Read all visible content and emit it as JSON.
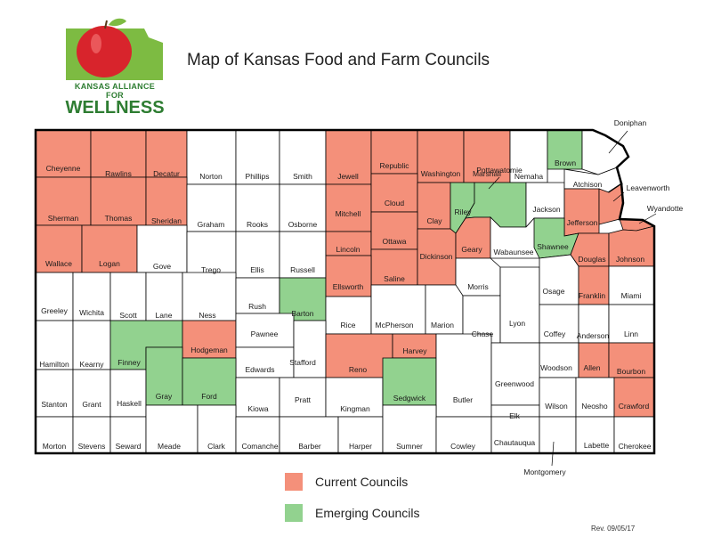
{
  "title": "Map of Kansas Food and Farm Councils",
  "logo": {
    "top_text": "KANSAS ALLIANCE FOR",
    "bottom_text": "WELLNESS"
  },
  "colors": {
    "current": "#f4907a",
    "emerging": "#92d28f",
    "none": "#ffffff",
    "border": "#000000",
    "logo_green": "#7dbb42",
    "logo_red": "#d8242c"
  },
  "legend": [
    {
      "label": "Current Councils",
      "status": "current"
    },
    {
      "label": "Emerging Councils",
      "status": "emerging"
    }
  ],
  "revision": "Rev. 09/05/17",
  "counties": [
    {
      "name": "Cheyenne",
      "status": "current"
    },
    {
      "name": "Rawlins",
      "status": "current"
    },
    {
      "name": "Decatur",
      "status": "current"
    },
    {
      "name": "Norton",
      "status": "none"
    },
    {
      "name": "Phillips",
      "status": "none"
    },
    {
      "name": "Smith",
      "status": "none"
    },
    {
      "name": "Jewell",
      "status": "current"
    },
    {
      "name": "Republic",
      "status": "current"
    },
    {
      "name": "Washington",
      "status": "current"
    },
    {
      "name": "Marshall",
      "status": "current"
    },
    {
      "name": "Nemaha",
      "status": "none"
    },
    {
      "name": "Brown",
      "status": "emerging"
    },
    {
      "name": "Sherman",
      "status": "current"
    },
    {
      "name": "Thomas",
      "status": "current"
    },
    {
      "name": "Sheridan",
      "status": "current"
    },
    {
      "name": "Graham",
      "status": "none"
    },
    {
      "name": "Rooks",
      "status": "none"
    },
    {
      "name": "Osborne",
      "status": "none"
    },
    {
      "name": "Mitchell",
      "status": "current"
    },
    {
      "name": "Cloud",
      "status": "current"
    },
    {
      "name": "Clay",
      "status": "current"
    },
    {
      "name": "Riley",
      "status": "emerging"
    },
    {
      "name": "Pottawatomie",
      "status": "emerging"
    },
    {
      "name": "Jackson",
      "status": "none"
    },
    {
      "name": "Atchison",
      "status": "none"
    },
    {
      "name": "Jefferson",
      "status": "current"
    },
    {
      "name": "Leavenworth",
      "status": "current"
    },
    {
      "name": "Wyandotte",
      "status": "current"
    },
    {
      "name": "Doniphan",
      "status": "none"
    },
    {
      "name": "Wallace",
      "status": "current"
    },
    {
      "name": "Logan",
      "status": "current"
    },
    {
      "name": "Gove",
      "status": "none"
    },
    {
      "name": "Trego",
      "status": "none"
    },
    {
      "name": "Ellis",
      "status": "none"
    },
    {
      "name": "Russell",
      "status": "none"
    },
    {
      "name": "Lincoln",
      "status": "current"
    },
    {
      "name": "Ottawa",
      "status": "current"
    },
    {
      "name": "Saline",
      "status": "current"
    },
    {
      "name": "Dickinson",
      "status": "current"
    },
    {
      "name": "Geary",
      "status": "current"
    },
    {
      "name": "Wabaunsee",
      "status": "none"
    },
    {
      "name": "Shawnee",
      "status": "emerging"
    },
    {
      "name": "Douglas",
      "status": "current"
    },
    {
      "name": "Johnson",
      "status": "current"
    },
    {
      "name": "Greeley",
      "status": "none"
    },
    {
      "name": "Wichita",
      "status": "none"
    },
    {
      "name": "Scott",
      "status": "none"
    },
    {
      "name": "Lane",
      "status": "none"
    },
    {
      "name": "Ness",
      "status": "none"
    },
    {
      "name": "Rush",
      "status": "none"
    },
    {
      "name": "Barton",
      "status": "emerging"
    },
    {
      "name": "Ellsworth",
      "status": "current"
    },
    {
      "name": "Rice",
      "status": "none"
    },
    {
      "name": "McPherson",
      "status": "none"
    },
    {
      "name": "Marion",
      "status": "none"
    },
    {
      "name": "Morris",
      "status": "none"
    },
    {
      "name": "Chase",
      "status": "none"
    },
    {
      "name": "Lyon",
      "status": "none"
    },
    {
      "name": "Osage",
      "status": "none"
    },
    {
      "name": "Franklin",
      "status": "current"
    },
    {
      "name": "Miami",
      "status": "none"
    },
    {
      "name": "Hamilton",
      "status": "none"
    },
    {
      "name": "Kearny",
      "status": "none"
    },
    {
      "name": "Finney",
      "status": "emerging"
    },
    {
      "name": "Hodgeman",
      "status": "current"
    },
    {
      "name": "Pawnee",
      "status": "none"
    },
    {
      "name": "Edwards",
      "status": "none"
    },
    {
      "name": "Stafford",
      "status": "none"
    },
    {
      "name": "Reno",
      "status": "current"
    },
    {
      "name": "Harvey",
      "status": "current"
    },
    {
      "name": "Coffey",
      "status": "none"
    },
    {
      "name": "Anderson",
      "status": "none"
    },
    {
      "name": "Linn",
      "status": "none"
    },
    {
      "name": "Woodson",
      "status": "none"
    },
    {
      "name": "Allen",
      "status": "current"
    },
    {
      "name": "Bourbon",
      "status": "current"
    },
    {
      "name": "Stanton",
      "status": "none"
    },
    {
      "name": "Grant",
      "status": "none"
    },
    {
      "name": "Haskell",
      "status": "none"
    },
    {
      "name": "Gray",
      "status": "emerging"
    },
    {
      "name": "Ford",
      "status": "emerging"
    },
    {
      "name": "Kiowa",
      "status": "none"
    },
    {
      "name": "Pratt",
      "status": "none"
    },
    {
      "name": "Kingman",
      "status": "none"
    },
    {
      "name": "Sedgwick",
      "status": "emerging"
    },
    {
      "name": "Butler",
      "status": "none"
    },
    {
      "name": "Greenwood",
      "status": "none"
    },
    {
      "name": "Elk",
      "status": "none"
    },
    {
      "name": "Wilson",
      "status": "none"
    },
    {
      "name": "Neosho",
      "status": "none"
    },
    {
      "name": "Crawford",
      "status": "current"
    },
    {
      "name": "Morton",
      "status": "none"
    },
    {
      "name": "Stevens",
      "status": "none"
    },
    {
      "name": "Seward",
      "status": "none"
    },
    {
      "name": "Meade",
      "status": "none"
    },
    {
      "name": "Clark",
      "status": "none"
    },
    {
      "name": "Comanche",
      "status": "none"
    },
    {
      "name": "Barber",
      "status": "none"
    },
    {
      "name": "Harper",
      "status": "none"
    },
    {
      "name": "Sumner",
      "status": "none"
    },
    {
      "name": "Cowley",
      "status": "none"
    },
    {
      "name": "Chautauqua",
      "status": "none"
    },
    {
      "name": "Montgomery",
      "status": "none"
    },
    {
      "name": "Labette",
      "status": "none"
    },
    {
      "name": "Cherokee",
      "status": "none"
    }
  ]
}
